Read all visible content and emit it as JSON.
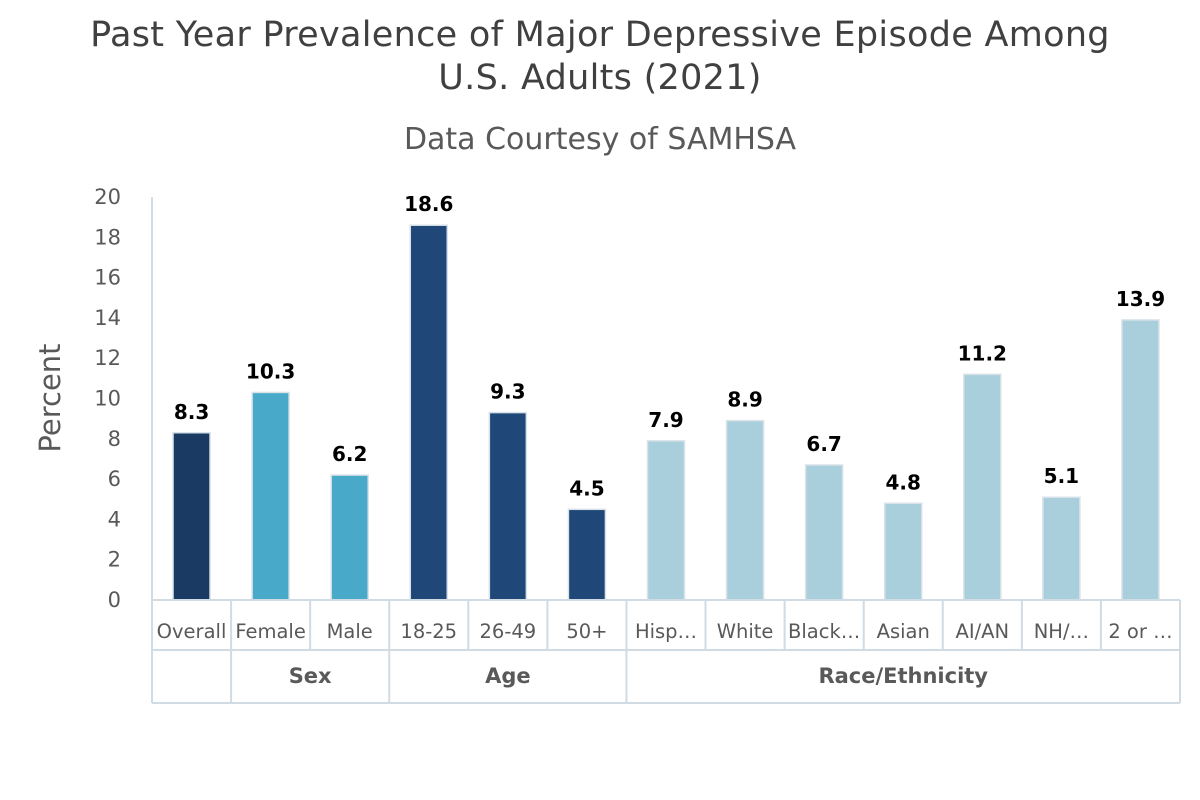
{
  "chart_data": {
    "type": "bar",
    "title_lines": [
      "Past Year Prevalence of Major Depressive Episode Among",
      "U.S. Adults (2021)"
    ],
    "subtitle": "Data Courtesy of SAMHSA",
    "ylabel": "Percent",
    "ylim": [
      0,
      20
    ],
    "yticks": [
      0,
      2,
      4,
      6,
      8,
      10,
      12,
      14,
      16,
      18,
      20
    ],
    "grid": false,
    "categories": [
      "Overall",
      "Female",
      "Male",
      "18-25",
      "26-49",
      "50+",
      "Hisp…",
      "White",
      "Black…",
      "Asian",
      "AI/AN",
      "NH/…",
      "2 or …"
    ],
    "values": [
      8.3,
      10.3,
      6.2,
      18.6,
      9.3,
      4.5,
      7.9,
      8.9,
      6.7,
      4.8,
      11.2,
      5.1,
      13.9
    ],
    "data_labels": [
      "8.3",
      "10.3",
      "6.2",
      "18.6",
      "9.3",
      "4.5",
      "7.9",
      "8.9",
      "6.7",
      "4.8",
      "11.2",
      "5.1",
      "13.9"
    ],
    "groups": [
      {
        "label": "",
        "count": 1,
        "color": "#1a3a63"
      },
      {
        "label": "Sex",
        "count": 2,
        "color": "#48aac8"
      },
      {
        "label": "Age",
        "count": 3,
        "color": "#1f4778"
      },
      {
        "label": "Race/Ethnicity",
        "count": 7,
        "color": "#a9cfdc"
      }
    ]
  }
}
